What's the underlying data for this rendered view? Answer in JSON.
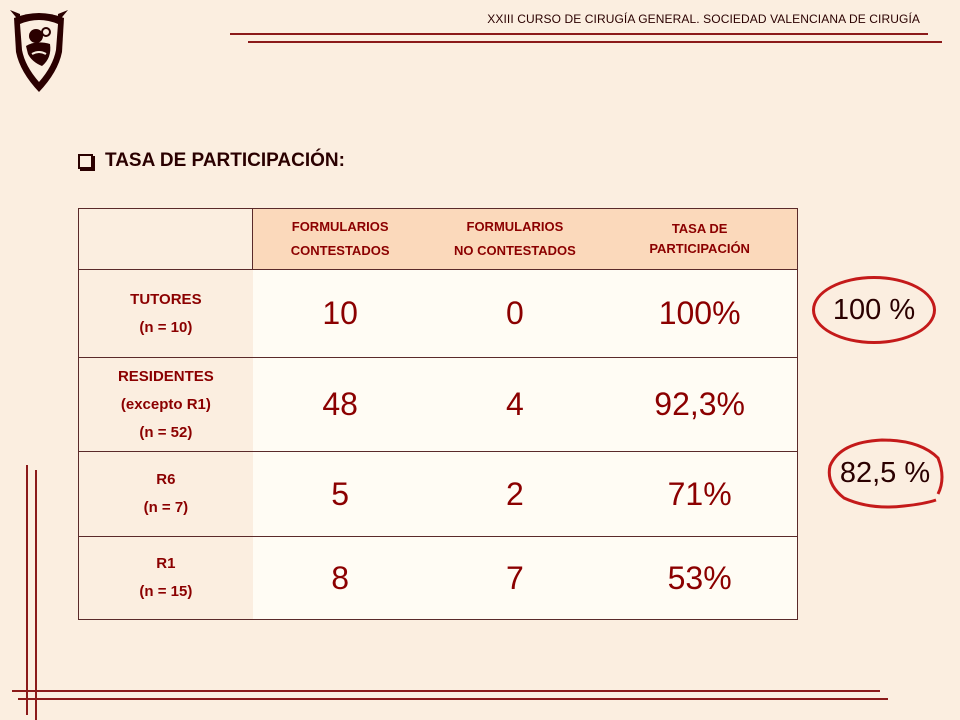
{
  "header": {
    "title": "XXIII CURSO DE CIRUGÍA GENERAL.  SOCIEDAD VALENCIANA DE CIRUGÍA"
  },
  "section": {
    "heading": "TASA DE PARTICIPACIÓN:"
  },
  "table": {
    "columns": [
      {
        "line1": "",
        "line2": ""
      },
      {
        "line1": "FORMULARIOS",
        "line2": "CONTESTADOS"
      },
      {
        "line1": "FORMULARIOS",
        "line2": "NO CONTESTADOS"
      },
      {
        "line1": "TASA DE",
        "line2": "PARTICIPACIÓN"
      }
    ],
    "rows": [
      {
        "label": [
          "TUTORES",
          "(n = 10)"
        ],
        "contestados": "10",
        "no_contestados": "0",
        "tasa": "100%"
      },
      {
        "label": [
          "RESIDENTES",
          "(excepto R1)",
          "(n = 52)"
        ],
        "contestados": "48",
        "no_contestados": "4",
        "tasa": "92,3%"
      },
      {
        "label": [
          "R6",
          "(n = 7)"
        ],
        "contestados": "5",
        "no_contestados": "2",
        "tasa": "71%"
      },
      {
        "label": [
          "R1",
          "(n = 15)"
        ],
        "contestados": "8",
        "no_contestados": "7",
        "tasa": "53%"
      }
    ]
  },
  "badges": {
    "tutores_total": "100 %",
    "residentes_total": "82,5 %"
  },
  "colors": {
    "background": "#fbeee0",
    "header_fill": "#fbd9bb",
    "accent": "#8b0000",
    "circle": "#c41a1a"
  },
  "icons": {
    "logo": "society-logo-icon",
    "bullet": "checkbox-bullet-icon"
  }
}
